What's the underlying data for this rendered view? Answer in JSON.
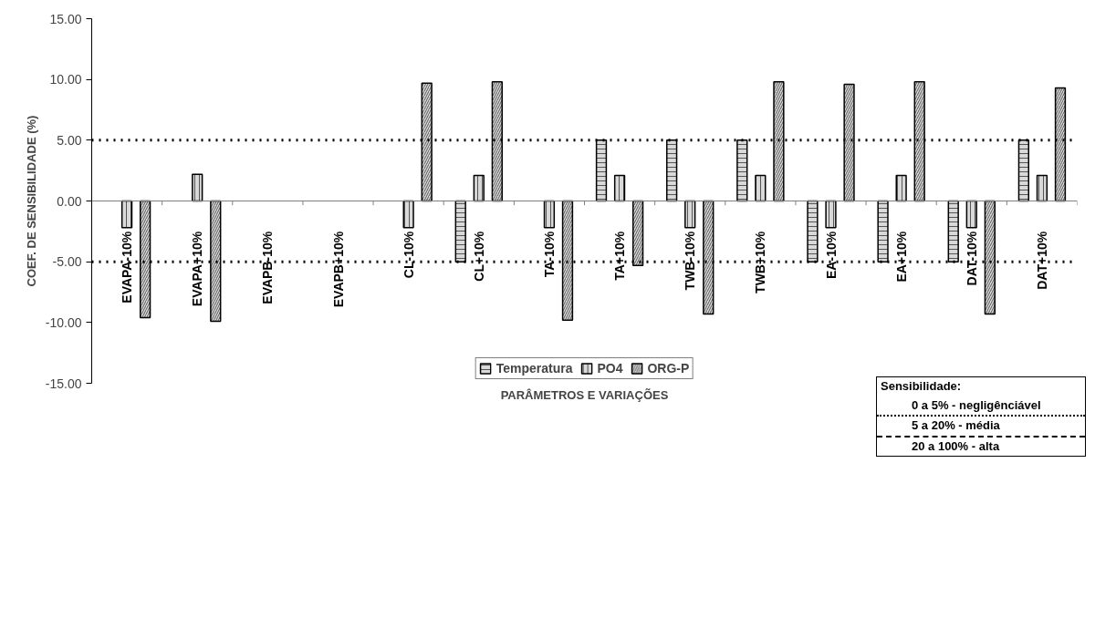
{
  "chart_data": {
    "type": "bar",
    "xlabel": "PARÂMETROS E VARIAÇÕES",
    "ylabel": "COEF. DE SENSIBILIDADE (%)",
    "categories": [
      "EVAPA-10%",
      "EVAPA+10%",
      "EVAPB-10%",
      "EVAPB+10%",
      "CL-10%",
      "CL+10%",
      "TA-10%",
      "TA+10%",
      "TWB-10%",
      "TWB+10%",
      "EA-10%",
      "EA+10%",
      "DAT-10%",
      "DAT+10%"
    ],
    "series": [
      {
        "name": "Temperatura",
        "color": "#d9d9d9",
        "values": [
          null,
          null,
          null,
          null,
          null,
          -5.0,
          null,
          5.0,
          5.0,
          5.0,
          -5.0,
          -5.0,
          -5.0,
          5.0
        ]
      },
      {
        "name": "PO4",
        "color": "#d9d9d9",
        "values": [
          -2.2,
          2.2,
          null,
          null,
          -2.2,
          2.1,
          -2.2,
          2.1,
          -2.2,
          2.1,
          -2.2,
          2.1,
          -2.2,
          2.1
        ]
      },
      {
        "name": "ORG-P",
        "color": "#d9d9d9",
        "values": [
          -9.6,
          -9.9,
          null,
          null,
          9.7,
          9.8,
          -9.8,
          -5.3,
          -9.3,
          9.8,
          9.6,
          9.8,
          -9.3,
          9.3
        ]
      }
    ],
    "ylim": [
      -15,
      15
    ],
    "yticks": [
      {
        "value": -15,
        "label": "-15.00"
      },
      {
        "value": -10,
        "label": "-10.00"
      },
      {
        "value": -5,
        "label": "-5.00"
      },
      {
        "value": 0,
        "label": "0.00"
      },
      {
        "value": 5,
        "label": "5.00"
      },
      {
        "value": 10,
        "label": "10.00"
      },
      {
        "value": 15,
        "label": "15.00"
      }
    ],
    "ref_lines": [
      {
        "axis": "y",
        "value": 5,
        "line_style": "dotted",
        "color": "#000000"
      },
      {
        "axis": "y",
        "value": -5,
        "line_style": "dotted",
        "color": "#000000"
      }
    ],
    "legend": "bottom",
    "grid": false,
    "annotations": [
      "Sensibilidade:",
      "0 a 5% - negligênciável",
      "5 a 20% - média",
      "20 a 100% - alta"
    ]
  }
}
